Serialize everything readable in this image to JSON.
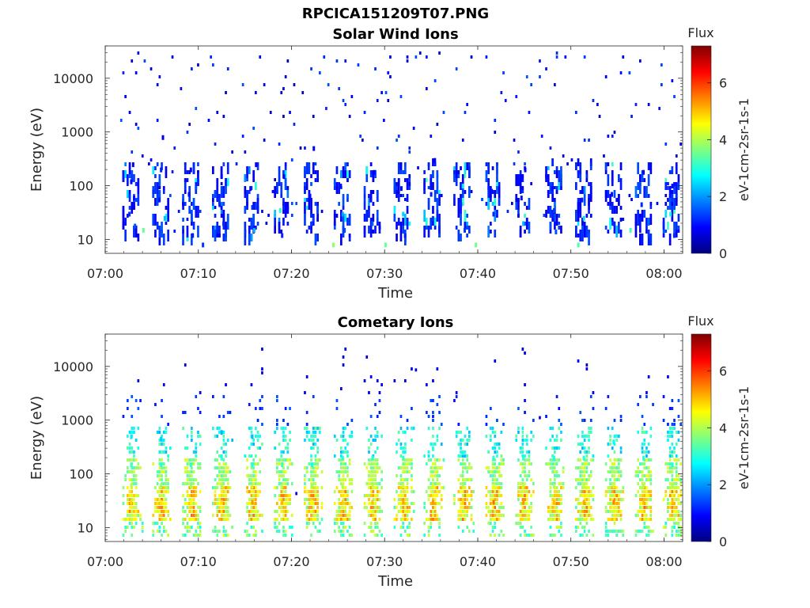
{
  "figure": {
    "title": "RPCICA151209T07.PNG"
  },
  "colors": {
    "colormap": "jet",
    "cmap_stops": [
      "#00007f",
      "#0000ff",
      "#007fff",
      "#00ffff",
      "#7fff7f",
      "#ffff00",
      "#ff7f00",
      "#ff0000",
      "#7f0000"
    ]
  },
  "chart_data": [
    {
      "type": "heatmap",
      "title": "Solar Wind Ions",
      "xlabel": "Time",
      "ylabel": "Energy (eV)",
      "x_range": [
        "07:00",
        "08:02"
      ],
      "x_ticks": [
        "07:00",
        "07:10",
        "07:20",
        "07:30",
        "07:40",
        "07:50",
        "08:00"
      ],
      "y_scale": "log",
      "ylim": [
        5.5,
        40000
      ],
      "y_ticks": [
        "10",
        "100",
        "1000",
        "10000"
      ],
      "colorbar": {
        "label": "Flux",
        "units": "eV-1cm-2sr-1s-1",
        "range": [
          0,
          7.3
        ],
        "ticks": [
          "0",
          "2",
          "4",
          "6"
        ]
      },
      "cycle_minutes": [
        2.6,
        5.8,
        9.0,
        12.3,
        15.6,
        18.8,
        22.0,
        25.3,
        28.5,
        31.8,
        35.0,
        38.2,
        41.5,
        44.7,
        48.0,
        51.2,
        54.4,
        57.6,
        60.7
      ],
      "points": [
        {
          "t": 2.6,
          "e": 30,
          "f": 1.2
        },
        {
          "t": 2.8,
          "e": 120,
          "f": 0.9
        },
        {
          "t": 3.0,
          "e": 250,
          "f": 0.8
        },
        {
          "t": 3.1,
          "e": 60,
          "f": 1.0
        },
        {
          "t": 3.2,
          "e": 18,
          "f": 1.5
        },
        {
          "t": 4.1,
          "e": 15,
          "f": 3.5
        },
        {
          "t": 5.8,
          "e": 55,
          "f": 1.0
        },
        {
          "t": 6.0,
          "e": 200,
          "f": 1.1
        },
        {
          "t": 6.2,
          "e": 800,
          "f": 0.8
        },
        {
          "t": 6.4,
          "e": 25,
          "f": 2.3
        },
        {
          "t": 9.0,
          "e": 70,
          "f": 1.0
        },
        {
          "t": 9.2,
          "e": 200,
          "f": 0.9
        },
        {
          "t": 9.4,
          "e": 12,
          "f": 1.1
        },
        {
          "t": 10.5,
          "e": 8,
          "f": 1.3
        },
        {
          "t": 12.3,
          "e": 45,
          "f": 1.1
        },
        {
          "t": 12.5,
          "e": 150,
          "f": 0.9
        },
        {
          "t": 12.7,
          "e": 20,
          "f": 1.2
        },
        {
          "t": 15.6,
          "e": 90,
          "f": 1.0
        },
        {
          "t": 15.8,
          "e": 40,
          "f": 1.2
        },
        {
          "t": 16.0,
          "e": 15,
          "f": 2.2
        },
        {
          "t": 16.2,
          "e": 250,
          "f": 0.8
        },
        {
          "t": 18.8,
          "e": 35,
          "f": 3.0
        },
        {
          "t": 19.0,
          "e": 12,
          "f": 1.2
        },
        {
          "t": 19.2,
          "e": 150,
          "f": 0.9
        },
        {
          "t": 22.0,
          "e": 65,
          "f": 1.0
        },
        {
          "t": 22.2,
          "e": 20,
          "f": 1.3
        },
        {
          "t": 22.4,
          "e": 500,
          "f": 0.8
        },
        {
          "t": 24.5,
          "e": 8,
          "f": 3.8
        },
        {
          "t": 25.3,
          "e": 100,
          "f": 1.0
        },
        {
          "t": 25.5,
          "e": 30,
          "f": 2.1
        },
        {
          "t": 25.7,
          "e": 15,
          "f": 1.4
        },
        {
          "t": 28.5,
          "e": 55,
          "f": 1.0
        },
        {
          "t": 28.7,
          "e": 20,
          "f": 1.6
        },
        {
          "t": 28.9,
          "e": 180,
          "f": 0.9
        },
        {
          "t": 30.1,
          "e": 8,
          "f": 3.5
        },
        {
          "t": 31.8,
          "e": 90,
          "f": 1.0
        },
        {
          "t": 32.0,
          "e": 30,
          "f": 2.4
        },
        {
          "t": 32.2,
          "e": 12,
          "f": 1.1
        },
        {
          "t": 35.0,
          "e": 70,
          "f": 1.1
        },
        {
          "t": 35.2,
          "e": 25,
          "f": 1.3
        },
        {
          "t": 35.4,
          "e": 300,
          "f": 0.9
        },
        {
          "t": 38.2,
          "e": 45,
          "f": 1.2
        },
        {
          "t": 38.4,
          "e": 100,
          "f": 2.6
        },
        {
          "t": 38.6,
          "e": 15,
          "f": 1.3
        },
        {
          "t": 39.8,
          "e": 8,
          "f": 3.6
        },
        {
          "t": 41.5,
          "e": 80,
          "f": 1.0
        },
        {
          "t": 41.7,
          "e": 30,
          "f": 1.2
        },
        {
          "t": 44.7,
          "e": 60,
          "f": 1.0
        },
        {
          "t": 44.9,
          "e": 20,
          "f": 2.2
        },
        {
          "t": 45.1,
          "e": 200,
          "f": 0.9
        },
        {
          "t": 48.0,
          "e": 90,
          "f": 1.0
        },
        {
          "t": 48.2,
          "e": 35,
          "f": 1.3
        },
        {
          "t": 48.4,
          "e": 14,
          "f": 1.5
        },
        {
          "t": 50.8,
          "e": 8,
          "f": 3.3
        },
        {
          "t": 51.2,
          "e": 55,
          "f": 1.1
        },
        {
          "t": 51.4,
          "e": 25,
          "f": 2.5
        },
        {
          "t": 54.4,
          "e": 70,
          "f": 1.0
        },
        {
          "t": 54.6,
          "e": 20,
          "f": 1.2
        },
        {
          "t": 56.4,
          "e": 15,
          "f": 3.2
        },
        {
          "t": 57.6,
          "e": 45,
          "f": 1.2
        },
        {
          "t": 57.8,
          "e": 180,
          "f": 0.9
        },
        {
          "t": 60.7,
          "e": 30,
          "f": 2.8
        },
        {
          "t": 60.9,
          "e": 100,
          "f": 1.0
        },
        {
          "t": 61.1,
          "e": 12,
          "f": 1.2
        }
      ]
    },
    {
      "type": "heatmap",
      "title": "Cometary Ions",
      "xlabel": "Time",
      "ylabel": "Energy (eV)",
      "x_range": [
        "07:00",
        "08:02"
      ],
      "x_ticks": [
        "07:00",
        "07:10",
        "07:20",
        "07:30",
        "07:40",
        "07:50",
        "08:00"
      ],
      "y_scale": "log",
      "ylim": [
        5.5,
        40000
      ],
      "y_ticks": [
        "10",
        "100",
        "1000",
        "10000"
      ],
      "colorbar": {
        "label": "Flux",
        "units": "eV-1cm-2sr-1s-1",
        "range": [
          0,
          7.3
        ],
        "ticks": [
          "0",
          "2",
          "4",
          "6"
        ]
      },
      "cycle_minutes": [
        2.8,
        6.0,
        9.2,
        12.5,
        15.8,
        19.0,
        22.2,
        25.5,
        28.7,
        32.0,
        35.2,
        38.4,
        41.7,
        44.9,
        48.2,
        51.4,
        54.6,
        57.8,
        60.9
      ],
      "points": [
        {
          "t": 2.8,
          "e": 30,
          "f": 4.8
        },
        {
          "t": 2.8,
          "e": 60,
          "f": 4.0
        },
        {
          "t": 2.8,
          "e": 150,
          "f": 3.2
        },
        {
          "t": 2.8,
          "e": 500,
          "f": 2.6
        },
        {
          "t": 6.0,
          "e": 30,
          "f": 4.7
        },
        {
          "t": 6.0,
          "e": 60,
          "f": 3.9
        },
        {
          "t": 6.0,
          "e": 150,
          "f": 3.0
        },
        {
          "t": 6.0,
          "e": 450,
          "f": 2.4
        },
        {
          "t": 9.2,
          "e": 30,
          "f": 4.6
        },
        {
          "t": 9.2,
          "e": 60,
          "f": 3.8
        },
        {
          "t": 9.2,
          "e": 150,
          "f": 3.1
        },
        {
          "t": 12.5,
          "e": 30,
          "f": 4.8
        },
        {
          "t": 12.5,
          "e": 60,
          "f": 4.0
        },
        {
          "t": 12.5,
          "e": 200,
          "f": 3.0
        },
        {
          "t": 12.5,
          "e": 600,
          "f": 2.2
        },
        {
          "t": 15.8,
          "e": 30,
          "f": 5.3
        },
        {
          "t": 15.8,
          "e": 60,
          "f": 4.2
        },
        {
          "t": 15.8,
          "e": 150,
          "f": 3.0
        },
        {
          "t": 15.8,
          "e": 500,
          "f": 2.3
        },
        {
          "t": 19.0,
          "e": 30,
          "f": 5.1
        },
        {
          "t": 19.0,
          "e": 60,
          "f": 4.1
        },
        {
          "t": 19.0,
          "e": 150,
          "f": 3.1
        },
        {
          "t": 22.2,
          "e": 30,
          "f": 4.6
        },
        {
          "t": 22.2,
          "e": 60,
          "f": 3.8
        },
        {
          "t": 22.2,
          "e": 150,
          "f": 2.9
        },
        {
          "t": 25.5,
          "e": 30,
          "f": 4.9
        },
        {
          "t": 25.5,
          "e": 60,
          "f": 4.0
        },
        {
          "t": 25.5,
          "e": 200,
          "f": 3.0
        },
        {
          "t": 28.7,
          "e": 30,
          "f": 5.0
        },
        {
          "t": 28.7,
          "e": 60,
          "f": 4.1
        },
        {
          "t": 28.7,
          "e": 200,
          "f": 3.0
        },
        {
          "t": 32.0,
          "e": 30,
          "f": 5.2
        },
        {
          "t": 32.0,
          "e": 60,
          "f": 4.2
        },
        {
          "t": 32.0,
          "e": 200,
          "f": 3.1
        },
        {
          "t": 35.2,
          "e": 30,
          "f": 5.3
        },
        {
          "t": 35.2,
          "e": 60,
          "f": 4.4
        },
        {
          "t": 35.2,
          "e": 300,
          "f": 3.0
        },
        {
          "t": 38.4,
          "e": 30,
          "f": 4.8
        },
        {
          "t": 38.4,
          "e": 60,
          "f": 4.0
        },
        {
          "t": 38.4,
          "e": 250,
          "f": 2.9
        },
        {
          "t": 41.7,
          "e": 30,
          "f": 5.6
        },
        {
          "t": 41.7,
          "e": 60,
          "f": 4.4
        },
        {
          "t": 41.7,
          "e": 200,
          "f": 3.0
        },
        {
          "t": 44.9,
          "e": 30,
          "f": 5.3
        },
        {
          "t": 44.9,
          "e": 60,
          "f": 4.2
        },
        {
          "t": 44.9,
          "e": 200,
          "f": 3.0
        },
        {
          "t": 48.2,
          "e": 30,
          "f": 5.0
        },
        {
          "t": 48.2,
          "e": 60,
          "f": 4.0
        },
        {
          "t": 48.2,
          "e": 200,
          "f": 3.0
        },
        {
          "t": 51.4,
          "e": 30,
          "f": 5.2
        },
        {
          "t": 51.4,
          "e": 60,
          "f": 4.1
        },
        {
          "t": 51.4,
          "e": 200,
          "f": 3.0
        },
        {
          "t": 54.6,
          "e": 30,
          "f": 5.5
        },
        {
          "t": 54.6,
          "e": 60,
          "f": 4.3
        },
        {
          "t": 54.6,
          "e": 400,
          "f": 2.8
        },
        {
          "t": 57.8,
          "e": 30,
          "f": 5.0
        },
        {
          "t": 57.8,
          "e": 60,
          "f": 4.0
        },
        {
          "t": 57.8,
          "e": 200,
          "f": 3.0
        },
        {
          "t": 60.9,
          "e": 30,
          "f": 5.0
        },
        {
          "t": 60.9,
          "e": 60,
          "f": 4.0
        },
        {
          "t": 60.9,
          "e": 150,
          "f": 3.0
        }
      ]
    }
  ]
}
